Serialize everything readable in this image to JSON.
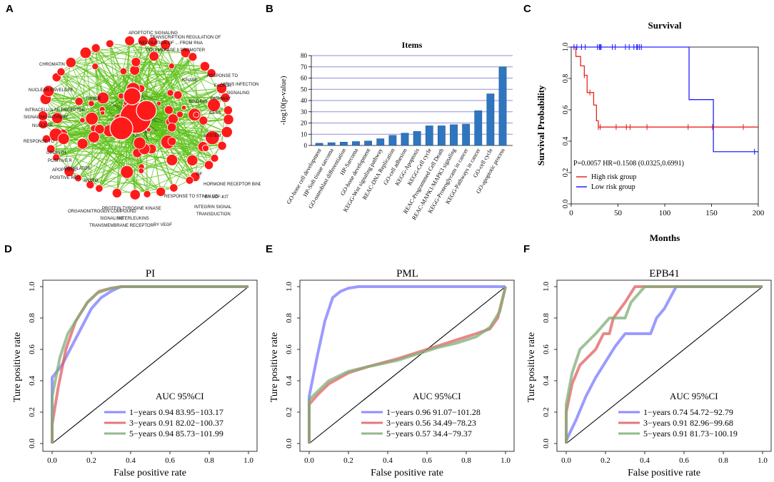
{
  "panels": {
    "a": "A",
    "b": "B",
    "c": "C",
    "d": "D",
    "e": "E",
    "f": "F"
  },
  "network": {
    "edge_color": "#5cc016",
    "node_color": "#ff1a1a",
    "labels": [
      "APOPTOTIC SIGNALING",
      "TRANSCRIPTION REGULATION OF",
      "REGULATION OF ... FROM RNA",
      "POLYMERASE II PROMOTER",
      "RESPONSE TO",
      "FACTOR",
      "VIRUS INFECTION",
      "SIGNALING",
      "PATHWAY",
      "CHROMATIN",
      "NUCLEAR ENVELOPE",
      "INTRACELLULAR RECEPTOR",
      "SIGNALING PATHWAY",
      "NUCLEAR",
      "TISSUE",
      "REGULATOR",
      "CESS",
      "SYSTEM",
      "HORMONE RECEPTOR BINDING",
      "RESPONSE TO",
      "POSITIVE R",
      "APOPTOTIC",
      "POSITIVE REG",
      "GROWTH",
      "ANATO",
      "RESPONSE TO STIMULUS",
      "ORGANONITROGEN COMPOUND",
      "SIGNALING",
      "INTERLEUKINS",
      "TRANSMEMBRANE RECEPTOR",
      "PROTEIN TYROSINE KINASE",
      "SIGNALING PATHWAY",
      "BY SCF-KIT",
      "INTEGRIN SIGNAL",
      "TRANSDUCTION",
      "BY VEGF",
      "OF",
      "BINDING",
      "KINASE"
    ]
  },
  "chart_data": [
    {
      "id": "B",
      "type": "bar",
      "title": "Items",
      "xlabel": "",
      "ylabel": "-log10(p-value)",
      "ylim": [
        0,
        80
      ],
      "yticks": [
        "0",
        "10",
        "20",
        "30",
        "40",
        "50",
        "60",
        "70",
        "80"
      ],
      "bar_color": "#2f76c0",
      "grid": true,
      "categories": [
        "GO-bone cell development",
        "HP-Soft tissue sarcoma",
        "GO-osteoblast differentiation",
        "HP-Sarcoma",
        "GO-bone development",
        "KEGG-Wnt signaling pathway",
        "REAC-DNA Replication",
        "GO-cell adhesion",
        "KEGG-Apoptosis",
        "KEGG-Cell cycle",
        "REAC-Programmed Cell Death",
        "REAC-MAPK1/MAPK3 signaling",
        "KEGG-Proteoglycans in cancer",
        "KEGG-Pathways in cancer",
        "GO-cell cycle",
        "GO-apoptotic process"
      ],
      "values": [
        2,
        2.5,
        3,
        3.5,
        4,
        6,
        9,
        11,
        12.5,
        17.5,
        17.5,
        18.5,
        19,
        31,
        46,
        70
      ]
    },
    {
      "id": "C",
      "type": "line",
      "title": "Survival",
      "xlabel": "Months",
      "ylabel": "Survival Probability",
      "xlim": [
        0,
        200
      ],
      "ylim": [
        0,
        1
      ],
      "xticks": [
        "0",
        "50",
        "100",
        "150",
        "200"
      ],
      "yticks": [
        "0.0",
        "0.2",
        "0.4",
        "0.6",
        "0.8",
        "1.0"
      ],
      "annotation": "P=0.0057 HR=0.1508 (0.0325,0.6991)",
      "legend": "bottom-left",
      "series": [
        {
          "name": "High risk group",
          "color": "#e8251f",
          "x": [
            0,
            5,
            5,
            10,
            10,
            14,
            14,
            17,
            17,
            24,
            24,
            27,
            27,
            29,
            29,
            200
          ],
          "y": [
            1,
            1,
            0.94,
            0.94,
            0.88,
            0.88,
            0.82,
            0.82,
            0.71,
            0.71,
            0.63,
            0.63,
            0.53,
            0.53,
            0.49,
            0.49
          ],
          "censor_x": [
            14,
            20,
            29,
            31,
            48,
            59,
            63,
            81,
            125,
            151,
            184
          ]
        },
        {
          "name": "Low risk group",
          "color": "#2222ff",
          "x": [
            0,
            126,
            126,
            152,
            152,
            200
          ],
          "y": [
            1,
            1,
            0.665,
            0.665,
            0.333,
            0.333
          ],
          "censor_x": [
            3,
            6,
            11,
            15,
            28,
            30,
            31,
            32,
            44,
            47,
            58,
            62,
            67,
            70,
            71,
            73,
            75,
            196
          ]
        }
      ]
    },
    {
      "id": "D",
      "type": "line",
      "title": "PI",
      "xlabel": "False positive rate",
      "ylabel": "Ture positive rate",
      "xlim": [
        0,
        1
      ],
      "ylim": [
        0,
        1
      ],
      "xticks": [
        "0.0",
        "0.2",
        "0.4",
        "0.6",
        "0.8",
        "1.0"
      ],
      "yticks": [
        "0.0",
        "0.2",
        "0.4",
        "0.6",
        "0.8",
        "1.0"
      ],
      "legend_title": "AUC 95%CI",
      "legend": "bottom-right",
      "series": [
        {
          "name": "1−years 0.94 83.95−103.17",
          "color": "#7a7aff",
          "x": [
            0,
            0,
            0.05,
            0.1,
            0.15,
            0.2,
            0.25,
            0.3,
            0.35,
            0.4,
            1
          ],
          "y": [
            0,
            0.42,
            0.5,
            0.62,
            0.74,
            0.86,
            0.93,
            0.97,
            1,
            1,
            1
          ]
        },
        {
          "name": "3−years 0.91 82.02−100.37",
          "color": "#e06060",
          "x": [
            0,
            0,
            0.03,
            0.07,
            0.12,
            0.18,
            0.24,
            0.3,
            0.35,
            1
          ],
          "y": [
            0,
            0.12,
            0.35,
            0.6,
            0.78,
            0.9,
            0.97,
            0.99,
            1,
            1
          ]
        },
        {
          "name": "5−years 0.94 85.73−101.99",
          "color": "#7fae77",
          "x": [
            0,
            0,
            0.04,
            0.08,
            0.13,
            0.18,
            0.23,
            0.3,
            0.36,
            1
          ],
          "y": [
            0,
            0.3,
            0.55,
            0.7,
            0.8,
            0.9,
            0.96,
            0.99,
            1,
            1
          ]
        }
      ]
    },
    {
      "id": "E",
      "type": "line",
      "title": "PML",
      "xlabel": "False positive rate",
      "ylabel": "Ture positive rate",
      "xlim": [
        0,
        1
      ],
      "ylim": [
        0,
        1
      ],
      "xticks": [
        "0.0",
        "0.2",
        "0.4",
        "0.6",
        "0.8",
        "1.0"
      ],
      "yticks": [
        "0.0",
        "0.2",
        "0.4",
        "0.6",
        "0.8",
        "1.0"
      ],
      "legend_title": "AUC 95%CI",
      "legend": "bottom-right",
      "series": [
        {
          "name": "1−years 0.96 91.07−101.28",
          "color": "#7a7aff",
          "x": [
            0,
            0,
            0.04,
            0.08,
            0.12,
            0.16,
            0.2,
            0.25,
            1
          ],
          "y": [
            0,
            0.3,
            0.55,
            0.78,
            0.93,
            0.97,
            0.99,
            1,
            1
          ]
        },
        {
          "name": "3−years 0.56 34.49−78.23",
          "color": "#e06060",
          "x": [
            0,
            0,
            0.05,
            0.1,
            0.2,
            0.3,
            0.45,
            0.55,
            0.65,
            0.75,
            0.85,
            0.92,
            0.96,
            1
          ],
          "y": [
            0,
            0.25,
            0.32,
            0.38,
            0.45,
            0.49,
            0.54,
            0.58,
            0.62,
            0.66,
            0.7,
            0.73,
            0.8,
            1
          ]
        },
        {
          "name": "5−years 0.57 34.4−79.37",
          "color": "#7fae77",
          "x": [
            0,
            0,
            0.05,
            0.1,
            0.2,
            0.3,
            0.45,
            0.55,
            0.65,
            0.75,
            0.85,
            0.92,
            0.97,
            1
          ],
          "y": [
            0,
            0.28,
            0.34,
            0.4,
            0.46,
            0.49,
            0.53,
            0.57,
            0.61,
            0.64,
            0.68,
            0.74,
            0.84,
            1
          ]
        }
      ]
    },
    {
      "id": "F",
      "type": "line",
      "title": "EPB41",
      "xlabel": "False positive rate",
      "ylabel": "Ture positive rate",
      "xlim": [
        0,
        1
      ],
      "ylim": [
        0,
        1
      ],
      "xticks": [
        "0.0",
        "0.2",
        "0.4",
        "0.6",
        "0.8",
        "1.0"
      ],
      "yticks": [
        "0.0",
        "0.2",
        "0.4",
        "0.6",
        "0.8",
        "1.0"
      ],
      "legend_title": "AUC 95%CI",
      "legend": "bottom-right",
      "series": [
        {
          "name": "1−years 0.74 54.72−92.79",
          "color": "#7a7aff",
          "x": [
            0,
            0,
            0.05,
            0.1,
            0.15,
            0.2,
            0.25,
            0.3,
            0.43,
            0.46,
            0.5,
            0.56,
            0.56,
            1
          ],
          "y": [
            0,
            0.02,
            0.15,
            0.3,
            0.42,
            0.52,
            0.62,
            0.7,
            0.7,
            0.8,
            0.86,
            1,
            1,
            1
          ]
        },
        {
          "name": "3−years 0.91 82.96−99.68",
          "color": "#e06060",
          "x": [
            0,
            0,
            0.03,
            0.07,
            0.15,
            0.19,
            0.22,
            0.24,
            0.3,
            0.35,
            1
          ],
          "y": [
            0,
            0.2,
            0.38,
            0.5,
            0.6,
            0.7,
            0.7,
            0.8,
            0.9,
            1,
            1
          ]
        },
        {
          "name": "5−years 0.91 81.73−100.19",
          "color": "#7fae77",
          "x": [
            0,
            0,
            0.03,
            0.07,
            0.15,
            0.22,
            0.3,
            0.33,
            0.4,
            1
          ],
          "y": [
            0,
            0.25,
            0.45,
            0.6,
            0.7,
            0.8,
            0.8,
            0.9,
            1,
            1
          ]
        }
      ]
    }
  ]
}
